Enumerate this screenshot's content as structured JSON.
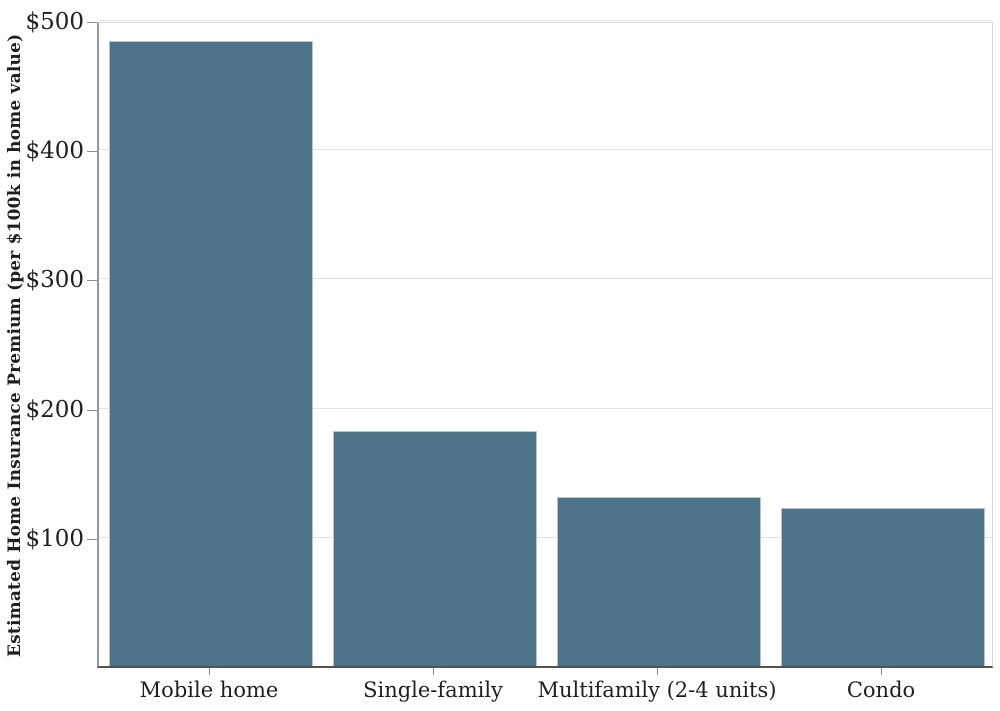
{
  "chart_data": {
    "type": "bar",
    "title": "",
    "xlabel": "",
    "ylabel": "Estimated Home Insurance Premium (per $100k in home value)",
    "categories": [
      "Mobile home",
      "Single-family",
      "Multifamily (2-4 units)",
      "Condo"
    ],
    "values": [
      484,
      182,
      131,
      122
    ],
    "ylim": [
      0,
      500
    ],
    "yticks": [
      100,
      200,
      300,
      400,
      500
    ],
    "ytick_labels": [
      "$100",
      "$200",
      "$300",
      "$400",
      "$500"
    ],
    "grid": "horizontal",
    "legend": "none",
    "colors": {
      "bar_fill": "#4d7389",
      "bar_edge": "#b6c5cf",
      "gridline": "#e3e3e3",
      "axis_left": "#969696",
      "axis_bottom": "#525252",
      "tick": "#8f8f8f",
      "text": "#1f1f1f",
      "background": "#ffffff"
    }
  }
}
